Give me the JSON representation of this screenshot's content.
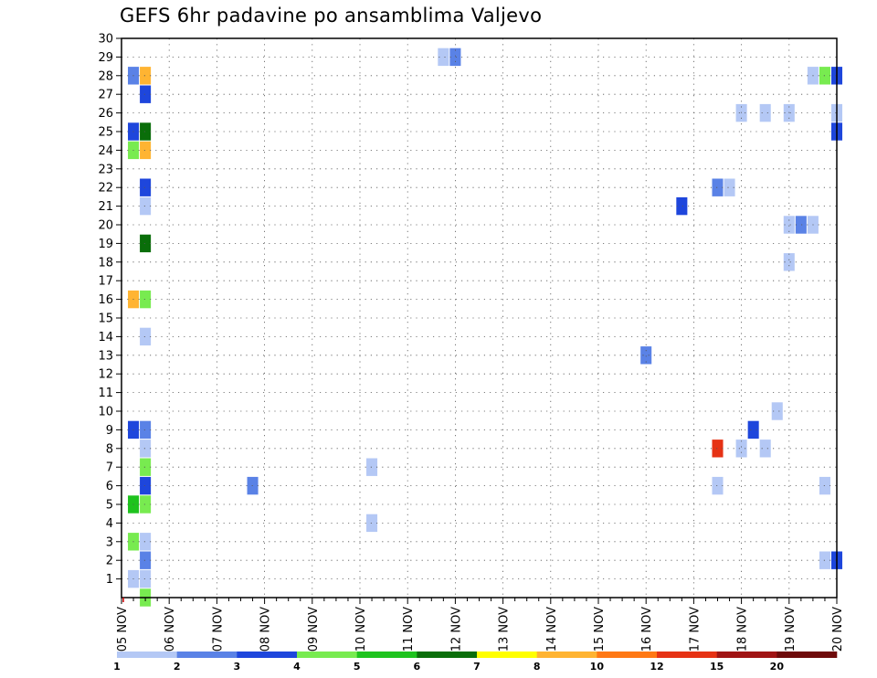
{
  "chart_data": {
    "type": "heatmap",
    "title": "GEFS 6hr padavine po ansamblima Valjevo",
    "xlabel": "",
    "ylabel": "",
    "x_tick_labels": [
      "05 NOV",
      "06 NOV",
      "07 NOV",
      "08 NOV",
      "09 NOV",
      "10 NOV",
      "11 NOV",
      "12 NOV",
      "13 NOV",
      "14 NOV",
      "15 NOV",
      "16 NOV",
      "17 NOV",
      "18 NOV",
      "19 NOV",
      "20 NOV"
    ],
    "x_start_label": "05 NOV",
    "time_step_hours": 6,
    "y_tick_labels": [
      "1",
      "2",
      "3",
      "4",
      "5",
      "6",
      "7",
      "8",
      "9",
      "10",
      "11",
      "12",
      "13",
      "14",
      "15",
      "16",
      "17",
      "18",
      "19",
      "20",
      "21",
      "22",
      "23",
      "24",
      "25",
      "26",
      "27",
      "28",
      "29",
      "30"
    ],
    "ylim": [
      0,
      30
    ],
    "grid": true,
    "legend": {
      "placement": "bottom",
      "labels": [
        "1",
        "2",
        "3",
        "4",
        "5",
        "6",
        "7",
        "8",
        "10",
        "12",
        "15",
        "20"
      ],
      "colors": [
        "#b4c8f5",
        "#5a82e6",
        "#1e46dc",
        "#78eb50",
        "#1ec31e",
        "#0a6e0a",
        "#ffff00",
        "#ffb432",
        "#ff7814",
        "#e63214",
        "#a01414",
        "#6e0a0a"
      ]
    },
    "cells": [
      {
        "x": 0.5,
        "y": 0,
        "color": "#78eb50"
      },
      {
        "x": 0.25,
        "y": 1,
        "color": "#b4c8f5"
      },
      {
        "x": 0.5,
        "y": 1,
        "color": "#b4c8f5"
      },
      {
        "x": 0.5,
        "y": 2,
        "color": "#5a82e6"
      },
      {
        "x": 14.75,
        "y": 2,
        "color": "#b4c8f5"
      },
      {
        "x": 15.0,
        "y": 2,
        "color": "#1e46dc"
      },
      {
        "x": 0.25,
        "y": 3,
        "color": "#78eb50"
      },
      {
        "x": 0.5,
        "y": 3,
        "color": "#b4c8f5"
      },
      {
        "x": 5.25,
        "y": 4,
        "color": "#b4c8f5"
      },
      {
        "x": 0.25,
        "y": 5,
        "color": "#1ec31e"
      },
      {
        "x": 0.5,
        "y": 5,
        "color": "#78eb50"
      },
      {
        "x": 0.5,
        "y": 6,
        "color": "#1e46dc"
      },
      {
        "x": 2.75,
        "y": 6,
        "color": "#5a82e6"
      },
      {
        "x": 12.5,
        "y": 6,
        "color": "#b4c8f5"
      },
      {
        "x": 14.75,
        "y": 6,
        "color": "#b4c8f5"
      },
      {
        "x": 0.5,
        "y": 7,
        "color": "#78eb50"
      },
      {
        "x": 5.25,
        "y": 7,
        "color": "#b4c8f5"
      },
      {
        "x": 0.5,
        "y": 8,
        "color": "#b4c8f5"
      },
      {
        "x": 12.5,
        "y": 8,
        "color": "#e63214"
      },
      {
        "x": 13.0,
        "y": 8,
        "color": "#b4c8f5"
      },
      {
        "x": 13.5,
        "y": 8,
        "color": "#b4c8f5"
      },
      {
        "x": 0.25,
        "y": 9,
        "color": "#1e46dc"
      },
      {
        "x": 0.5,
        "y": 9,
        "color": "#5a82e6"
      },
      {
        "x": 13.25,
        "y": 9,
        "color": "#1e46dc"
      },
      {
        "x": 13.75,
        "y": 10,
        "color": "#b4c8f5"
      },
      {
        "x": 11.0,
        "y": 13,
        "color": "#5a82e6"
      },
      {
        "x": 0.5,
        "y": 14,
        "color": "#b4c8f5"
      },
      {
        "x": 0.25,
        "y": 16,
        "color": "#ffb432"
      },
      {
        "x": 0.5,
        "y": 16,
        "color": "#78eb50"
      },
      {
        "x": 14.0,
        "y": 18,
        "color": "#b4c8f5"
      },
      {
        "x": 0.5,
        "y": 19,
        "color": "#0a6e0a"
      },
      {
        "x": 14.0,
        "y": 20,
        "color": "#b4c8f5"
      },
      {
        "x": 14.25,
        "y": 20,
        "color": "#5a82e6"
      },
      {
        "x": 14.5,
        "y": 20,
        "color": "#b4c8f5"
      },
      {
        "x": 11.75,
        "y": 21,
        "color": "#1e46dc"
      },
      {
        "x": 0.5,
        "y": 21,
        "color": "#b4c8f5"
      },
      {
        "x": 0.5,
        "y": 22,
        "color": "#1e46dc"
      },
      {
        "x": 12.5,
        "y": 22,
        "color": "#5a82e6"
      },
      {
        "x": 12.75,
        "y": 22,
        "color": "#b4c8f5"
      },
      {
        "x": 0.25,
        "y": 24,
        "color": "#78eb50"
      },
      {
        "x": 0.5,
        "y": 24,
        "color": "#ffb432"
      },
      {
        "x": 0.25,
        "y": 25,
        "color": "#1e46dc"
      },
      {
        "x": 0.5,
        "y": 25,
        "color": "#0a6e0a"
      },
      {
        "x": 15.0,
        "y": 25,
        "color": "#1e46dc"
      },
      {
        "x": 13.0,
        "y": 26,
        "color": "#b4c8f5"
      },
      {
        "x": 13.5,
        "y": 26,
        "color": "#b4c8f5"
      },
      {
        "x": 14.0,
        "y": 26,
        "color": "#b4c8f5"
      },
      {
        "x": 15.0,
        "y": 26,
        "color": "#b4c8f5"
      },
      {
        "x": 0.5,
        "y": 27,
        "color": "#1e46dc"
      },
      {
        "x": 0.25,
        "y": 28,
        "color": "#5a82e6"
      },
      {
        "x": 0.5,
        "y": 28,
        "color": "#ffb432"
      },
      {
        "x": 14.5,
        "y": 28,
        "color": "#b4c8f5"
      },
      {
        "x": 14.75,
        "y": 28,
        "color": "#78eb50"
      },
      {
        "x": 15.0,
        "y": 28,
        "color": "#1e46dc"
      },
      {
        "x": 6.75,
        "y": 29,
        "color": "#b4c8f5"
      },
      {
        "x": 7.0,
        "y": 29,
        "color": "#5a82e6"
      }
    ]
  }
}
